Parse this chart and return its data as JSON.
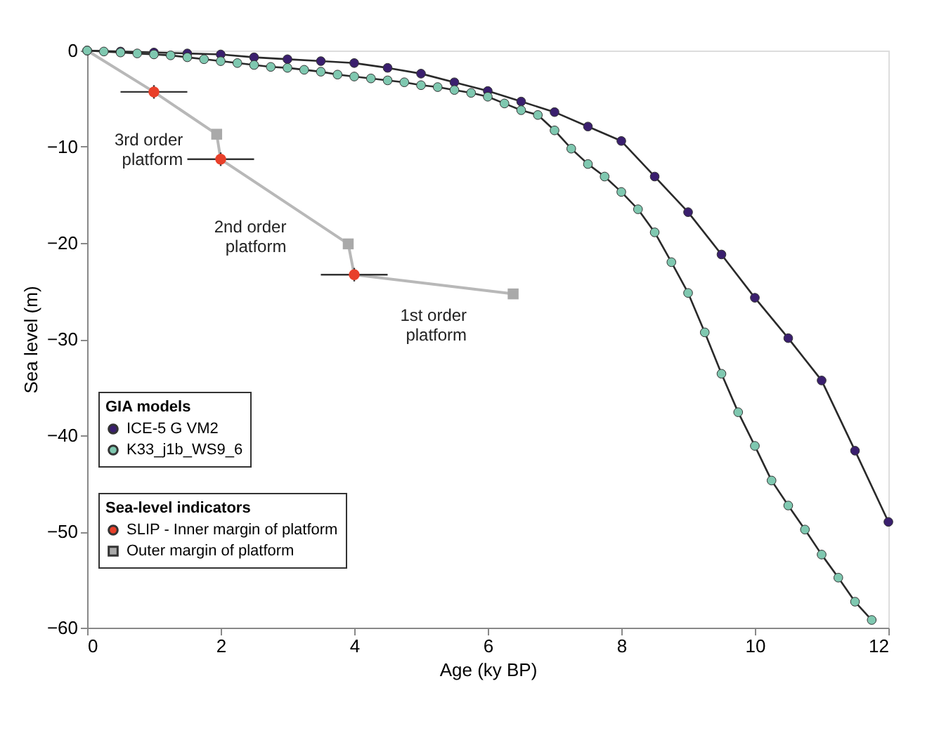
{
  "chart_data": {
    "type": "line",
    "xlabel": "Age (ky BP)",
    "ylabel": "Sea level (m)",
    "xlim": [
      0,
      12
    ],
    "ylim": [
      -60,
      0
    ],
    "xticks": [
      0,
      2,
      4,
      6,
      8,
      10,
      12
    ],
    "yticks": [
      -60,
      -50,
      -40,
      -30,
      -20,
      -10,
      0
    ],
    "grid": false,
    "legend": "bottom left",
    "legend_title": [
      "GIA models",
      "Sea-level indicators"
    ],
    "series": [
      {
        "color": "#b8b8b8",
        "marker": "none",
        "line_style": "solid",
        "x": [
          0,
          1,
          1.94,
          2,
          3.91,
          4,
          6.38
        ],
        "values": [
          0,
          -4.3,
          -8.7,
          -11.3,
          -20.1,
          -23.3,
          -25.3
        ]
      },
      {
        "name": "ICE-5 G VM2",
        "color": "#3a1f6e",
        "marker": "circle",
        "line_style": "solid",
        "x": [
          0,
          0.5,
          1,
          1.5,
          2,
          2.5,
          3,
          3.5,
          4,
          4.5,
          5,
          5.5,
          6,
          6.5,
          7,
          7.5,
          8,
          8.5,
          9,
          9.5,
          10,
          10.5,
          11,
          11.5,
          12
        ],
        "values": [
          0,
          -0.1,
          -0.2,
          -0.3,
          -0.4,
          -0.7,
          -0.9,
          -1.1,
          -1.3,
          -1.8,
          -2.4,
          -3.3,
          -4.2,
          -5.3,
          -6.4,
          -7.9,
          -9.4,
          -13.1,
          -16.8,
          -21.2,
          -25.7,
          -29.9,
          -34.3,
          -41.6,
          -49.0
        ]
      },
      {
        "name": "K33_j1b_WS9_6",
        "color": "#7fc8b0",
        "marker": "circle",
        "line_style": "solid",
        "x": [
          0,
          0.25,
          0.5,
          0.75,
          1,
          1.25,
          1.5,
          1.75,
          2,
          2.25,
          2.5,
          2.75,
          3,
          3.25,
          3.5,
          3.75,
          4,
          4.25,
          4.5,
          4.75,
          5,
          5.25,
          5.5,
          5.75,
          6,
          6.25,
          6.5,
          6.75,
          7,
          7.25,
          7.5,
          7.75,
          8,
          8.25,
          8.5,
          8.75,
          9,
          9.25,
          9.5,
          9.75,
          10,
          10.25,
          10.5,
          10.75,
          11,
          11.25,
          11.5,
          11.75
        ],
        "values": [
          0,
          -0.1,
          -0.2,
          -0.3,
          -0.4,
          -0.5,
          -0.7,
          -0.9,
          -1.1,
          -1.3,
          -1.5,
          -1.7,
          -1.8,
          -2.0,
          -2.2,
          -2.5,
          -2.7,
          -2.9,
          -3.1,
          -3.3,
          -3.6,
          -3.8,
          -4.1,
          -4.4,
          -4.8,
          -5.5,
          -6.2,
          -6.7,
          -8.3,
          -10.2,
          -11.8,
          -13.1,
          -14.7,
          -16.5,
          -18.9,
          -22.0,
          -25.2,
          -29.3,
          -33.6,
          -37.6,
          -41.1,
          -44.7,
          -47.3,
          -49.8,
          -52.4,
          -54.8,
          -57.3,
          -59.2
        ]
      },
      {
        "type": "scatter",
        "name": "SLIP - Inner margin of platform",
        "color": "#e8402a",
        "marker": "circle",
        "x": [
          1,
          2,
          4
        ],
        "values": [
          -4.3,
          -11.3,
          -23.3
        ],
        "errors": [
          0.7,
          0.7,
          0.7
        ],
        "xerrors": [
          0.5,
          0.5,
          0.5
        ]
      },
      {
        "type": "scatter",
        "name": "Outer margin of platform",
        "color": "#a9a9a9",
        "marker": "square",
        "x": [
          1.94,
          3.91,
          6.38
        ],
        "values": [
          -8.7,
          -20.1,
          -25.3
        ]
      }
    ],
    "annotations": [
      "3rd order\nplatform",
      "2nd order\nplatform",
      "1st order\nplatform"
    ]
  }
}
